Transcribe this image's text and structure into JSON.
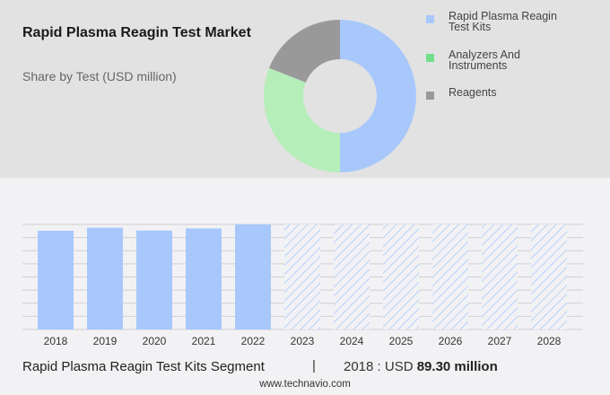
{
  "header": {
    "title": "Rapid Plasma Reagin Test Market",
    "subtitle": "Share by Test (USD million)"
  },
  "legend": [
    {
      "label_line1": "Rapid Plasma Reagin",
      "label_line2": "Test Kits",
      "color": "#a8c8fc"
    },
    {
      "label_line1": "Analyzers And",
      "label_line2": "Instruments",
      "color": "#6fdf8a"
    },
    {
      "label_line1": "Reagents",
      "label_line2": "",
      "color": "#999999"
    }
  ],
  "footer": {
    "segment": "Rapid Plasma Reagin Test Kits Segment",
    "separator": "|",
    "value_prefix": "2018 : USD ",
    "value_bold": "89.30 million",
    "url": "www.technavio.com"
  },
  "chart_data": [
    {
      "type": "pie",
      "title": "Rapid Plasma Reagin Test Market",
      "subtitle": "Share by Test (USD million)",
      "donut": true,
      "categories": [
        "Rapid Plasma Reagin Test Kits",
        "Analyzers And Instruments",
        "Reagents"
      ],
      "values": [
        50,
        31,
        19
      ],
      "colors": [
        "#a8c8fc",
        "#b6eeba",
        "#999999"
      ],
      "legend_position": "right"
    },
    {
      "type": "bar",
      "title": "Rapid Plasma Reagin Test Kits Segment",
      "categories": [
        "2018",
        "2019",
        "2020",
        "2021",
        "2022",
        "2023",
        "2024",
        "2025",
        "2026",
        "2027",
        "2028"
      ],
      "values": [
        89.3,
        92.1,
        89.5,
        91.4,
        95.0,
        null,
        null,
        null,
        null,
        null,
        null
      ],
      "forecast_categories": [
        "2023",
        "2024",
        "2025",
        "2026",
        "2027",
        "2028"
      ],
      "forecast_style": "hatched",
      "annotation": "2018 : USD 89.30 million",
      "xlabel": "",
      "ylabel": "",
      "grid": true,
      "y_tick_labels_visible": false,
      "bar_color": "#a8c8fc"
    }
  ]
}
